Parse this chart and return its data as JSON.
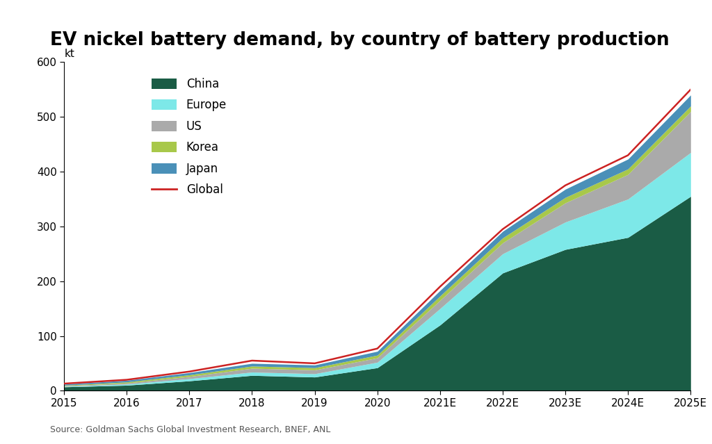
{
  "title": "EV nickel battery demand, by country of battery production",
  "ylabel": "kt",
  "source": "Source: Goldman Sachs Global Investment Research, BNEF, ANL",
  "background_color": "#ffffff",
  "xlabels": [
    "2015",
    "2016",
    "2017",
    "2018",
    "2019",
    "2020",
    "2021E",
    "2022E",
    "2023E",
    "2024E",
    "2025E"
  ],
  "ylim": [
    0,
    600
  ],
  "yticks": [
    0,
    100,
    200,
    300,
    400,
    500,
    600
  ],
  "series": {
    "China": [
      7,
      10,
      18,
      28,
      25,
      42,
      120,
      215,
      258,
      280,
      355
    ],
    "Europe": [
      1,
      2,
      4,
      6,
      6,
      10,
      30,
      35,
      50,
      70,
      80
    ],
    "US": [
      1,
      2,
      4,
      7,
      7,
      8,
      15,
      20,
      35,
      45,
      75
    ],
    "Korea": [
      1,
      2,
      3,
      4,
      4,
      5,
      8,
      9,
      10,
      10,
      10
    ],
    "Japan": [
      2,
      3,
      4,
      5,
      5,
      7,
      10,
      12,
      15,
      18,
      20
    ]
  },
  "global_line": [
    13,
    20,
    35,
    55,
    50,
    77,
    190,
    295,
    375,
    430,
    550
  ],
  "colors": {
    "China": "#1a5c45",
    "Europe": "#7de8e8",
    "US": "#aaaaaa",
    "Korea": "#a8c84a",
    "Japan": "#4a90b8"
  },
  "global_color": "#cc2222",
  "stack_order": [
    "China",
    "Europe",
    "US",
    "Korea",
    "Japan"
  ],
  "legend_order": [
    "China",
    "Europe",
    "US",
    "Korea",
    "Japan",
    "Global"
  ],
  "title_fontsize": 19,
  "axis_fontsize": 11,
  "source_fontsize": 9,
  "legend_fontsize": 12
}
